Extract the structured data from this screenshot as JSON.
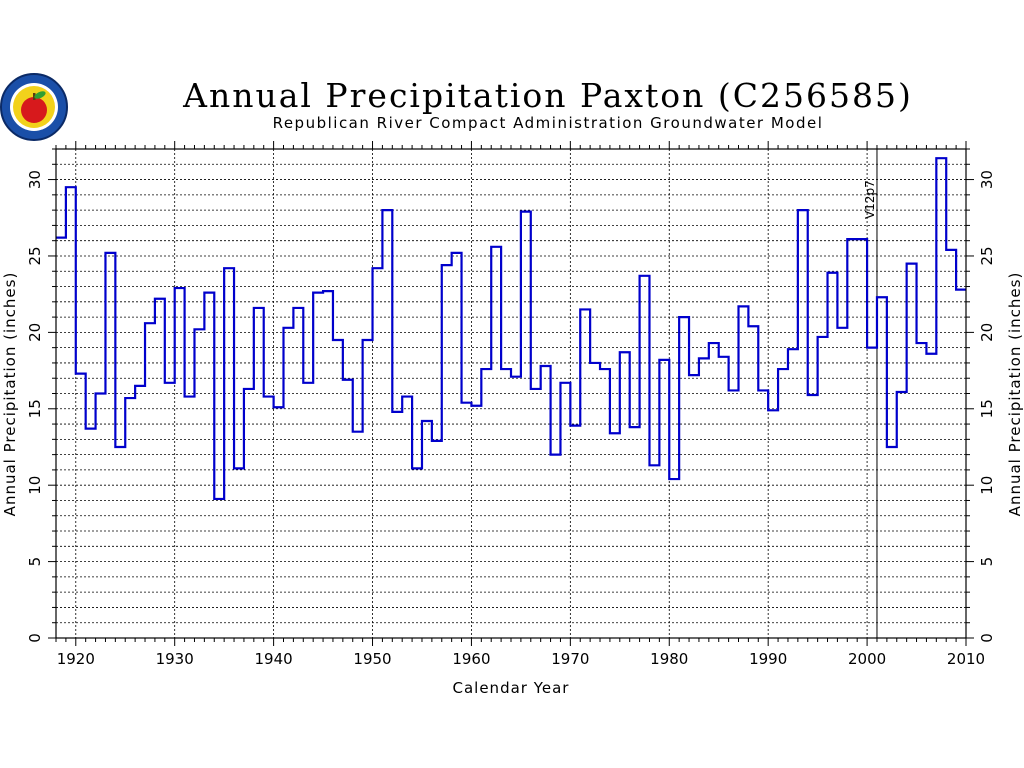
{
  "chart_data": {
    "type": "line",
    "style": "step",
    "title": "Annual Precipitation Paxton (C256585)",
    "subtitle": "Republican River Compact Administration Groundwater Model",
    "xlabel": "Calendar Year",
    "ylabel": "Annual Precipitation (inches)",
    "ylabel_right": "Annual Precipitation (inches)",
    "xlim": [
      1918,
      2010
    ],
    "ylim": [
      0,
      32
    ],
    "x_ticks": [
      1920,
      1930,
      1940,
      1950,
      1960,
      1970,
      1980,
      1990,
      2000,
      2010
    ],
    "y_ticks": [
      0,
      5,
      10,
      15,
      20,
      25,
      30
    ],
    "grid": true,
    "colors": {
      "line": "#0000cc",
      "grid": "#000000"
    },
    "annotation": {
      "label": "V12p7",
      "x": 2001
    },
    "x": [
      1918,
      1919,
      1920,
      1921,
      1922,
      1923,
      1924,
      1925,
      1926,
      1927,
      1928,
      1929,
      1930,
      1931,
      1932,
      1933,
      1934,
      1935,
      1936,
      1937,
      1938,
      1939,
      1940,
      1941,
      1942,
      1943,
      1944,
      1945,
      1946,
      1947,
      1948,
      1949,
      1950,
      1951,
      1952,
      1953,
      1954,
      1955,
      1956,
      1957,
      1958,
      1959,
      1960,
      1961,
      1962,
      1963,
      1964,
      1965,
      1966,
      1967,
      1968,
      1969,
      1970,
      1971,
      1972,
      1973,
      1974,
      1975,
      1976,
      1977,
      1978,
      1979,
      1980,
      1981,
      1982,
      1983,
      1984,
      1985,
      1986,
      1987,
      1988,
      1989,
      1990,
      1991,
      1992,
      1993,
      1994,
      1995,
      1996,
      1997,
      1998,
      1999,
      2000,
      2001,
      2002,
      2003,
      2004,
      2005,
      2006,
      2007,
      2008,
      2009
    ],
    "values": [
      26.2,
      29.5,
      17.3,
      13.7,
      16.0,
      25.2,
      12.5,
      15.7,
      16.5,
      20.6,
      22.2,
      16.7,
      22.9,
      15.8,
      20.2,
      22.6,
      9.1,
      24.2,
      11.1,
      16.3,
      21.6,
      15.8,
      15.1,
      20.3,
      21.6,
      16.7,
      22.6,
      22.7,
      19.5,
      16.9,
      13.5,
      19.5,
      24.2,
      28.0,
      14.8,
      15.8,
      11.1,
      14.2,
      12.9,
      24.4,
      25.2,
      15.4,
      15.2,
      17.6,
      25.6,
      17.6,
      17.1,
      27.9,
      16.3,
      17.8,
      12.0,
      16.7,
      13.9,
      21.5,
      18.0,
      17.6,
      13.4,
      18.7,
      13.8,
      23.7,
      11.3,
      18.2,
      10.4,
      21.0,
      17.2,
      18.3,
      19.3,
      18.4,
      16.2,
      21.7,
      20.4,
      16.2,
      14.9,
      17.6,
      18.9,
      28.0,
      15.9,
      19.7,
      23.9,
      20.3,
      26.1,
      26.1,
      19.0,
      22.3,
      12.5,
      16.1,
      24.5,
      19.3,
      18.6,
      31.4,
      25.4,
      22.8
    ]
  }
}
